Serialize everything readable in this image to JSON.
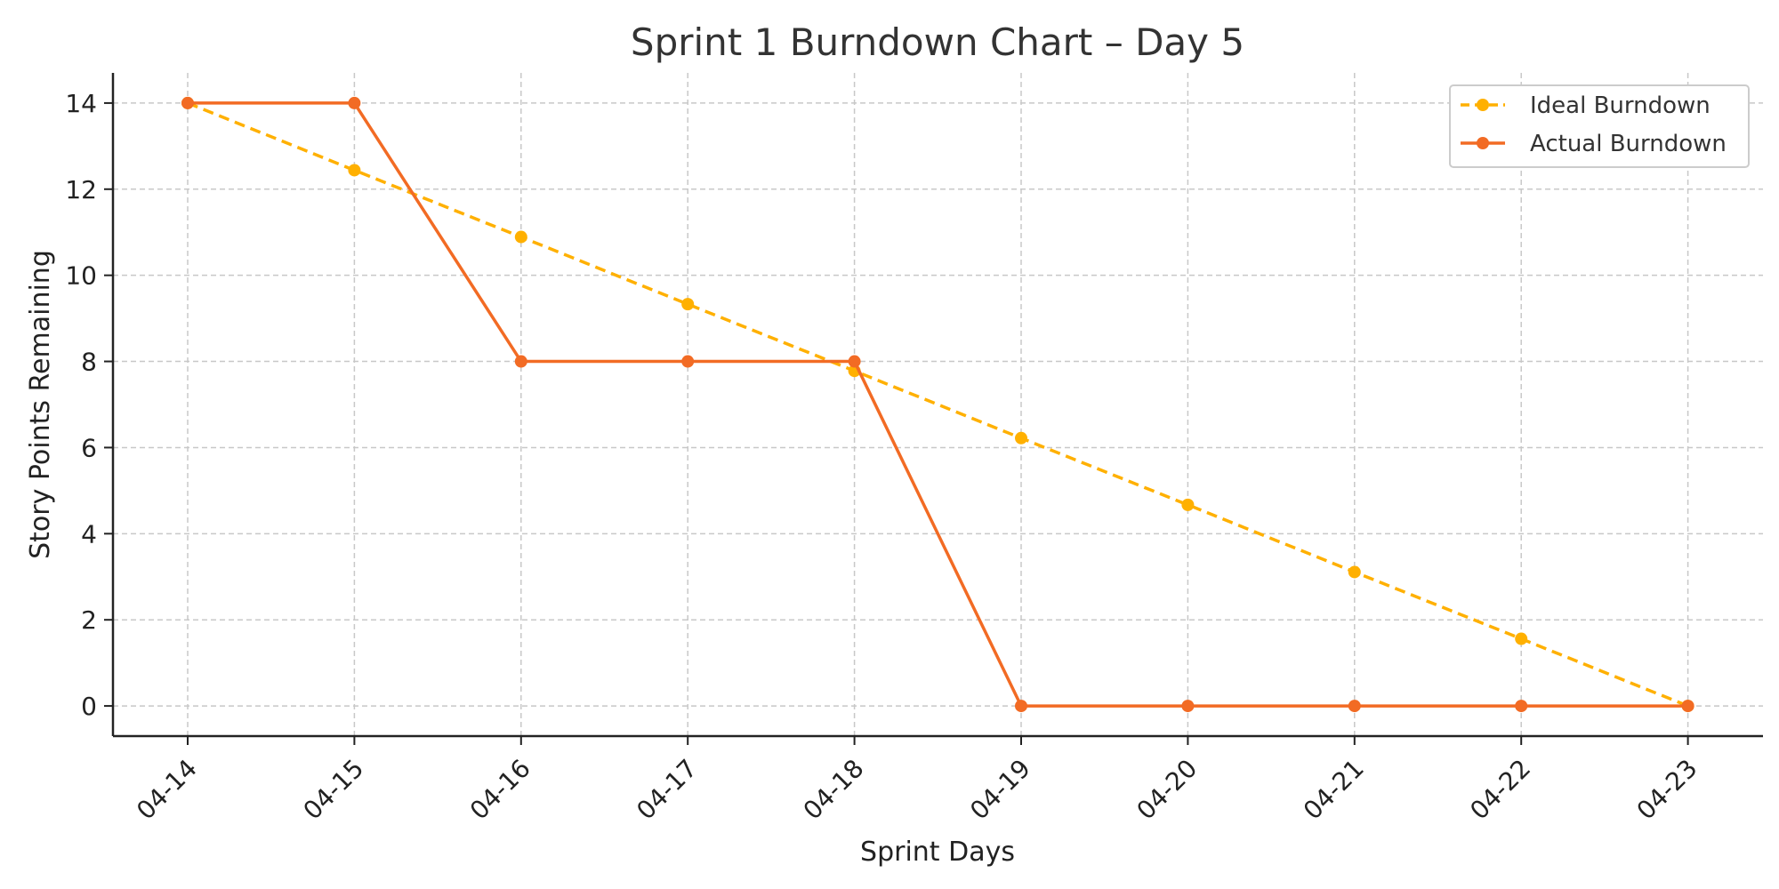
{
  "chart_data": {
    "type": "line",
    "title": "Sprint 1 Burndown Chart – Day 5",
    "xlabel": "Sprint Days",
    "ylabel": "Story Points Remaining",
    "categories": [
      "04-14",
      "04-15",
      "04-16",
      "04-17",
      "04-18",
      "04-19",
      "04-20",
      "04-21",
      "04-22",
      "04-23"
    ],
    "ylim": [
      -0.7,
      14.7
    ],
    "yticks": [
      0,
      2,
      4,
      6,
      8,
      10,
      12,
      14
    ],
    "grid": true,
    "legend_position": "top-right",
    "series": [
      {
        "name": "Ideal Burndown",
        "color": "#FFB000",
        "style": "dashed",
        "values": [
          14,
          12.44,
          10.89,
          9.33,
          7.78,
          6.22,
          4.67,
          3.11,
          1.56,
          0
        ]
      },
      {
        "name": "Actual Burndown",
        "color": "#F26B24",
        "style": "solid",
        "values": [
          14,
          14,
          8,
          8,
          8,
          0,
          0,
          0,
          0,
          0
        ]
      }
    ]
  }
}
